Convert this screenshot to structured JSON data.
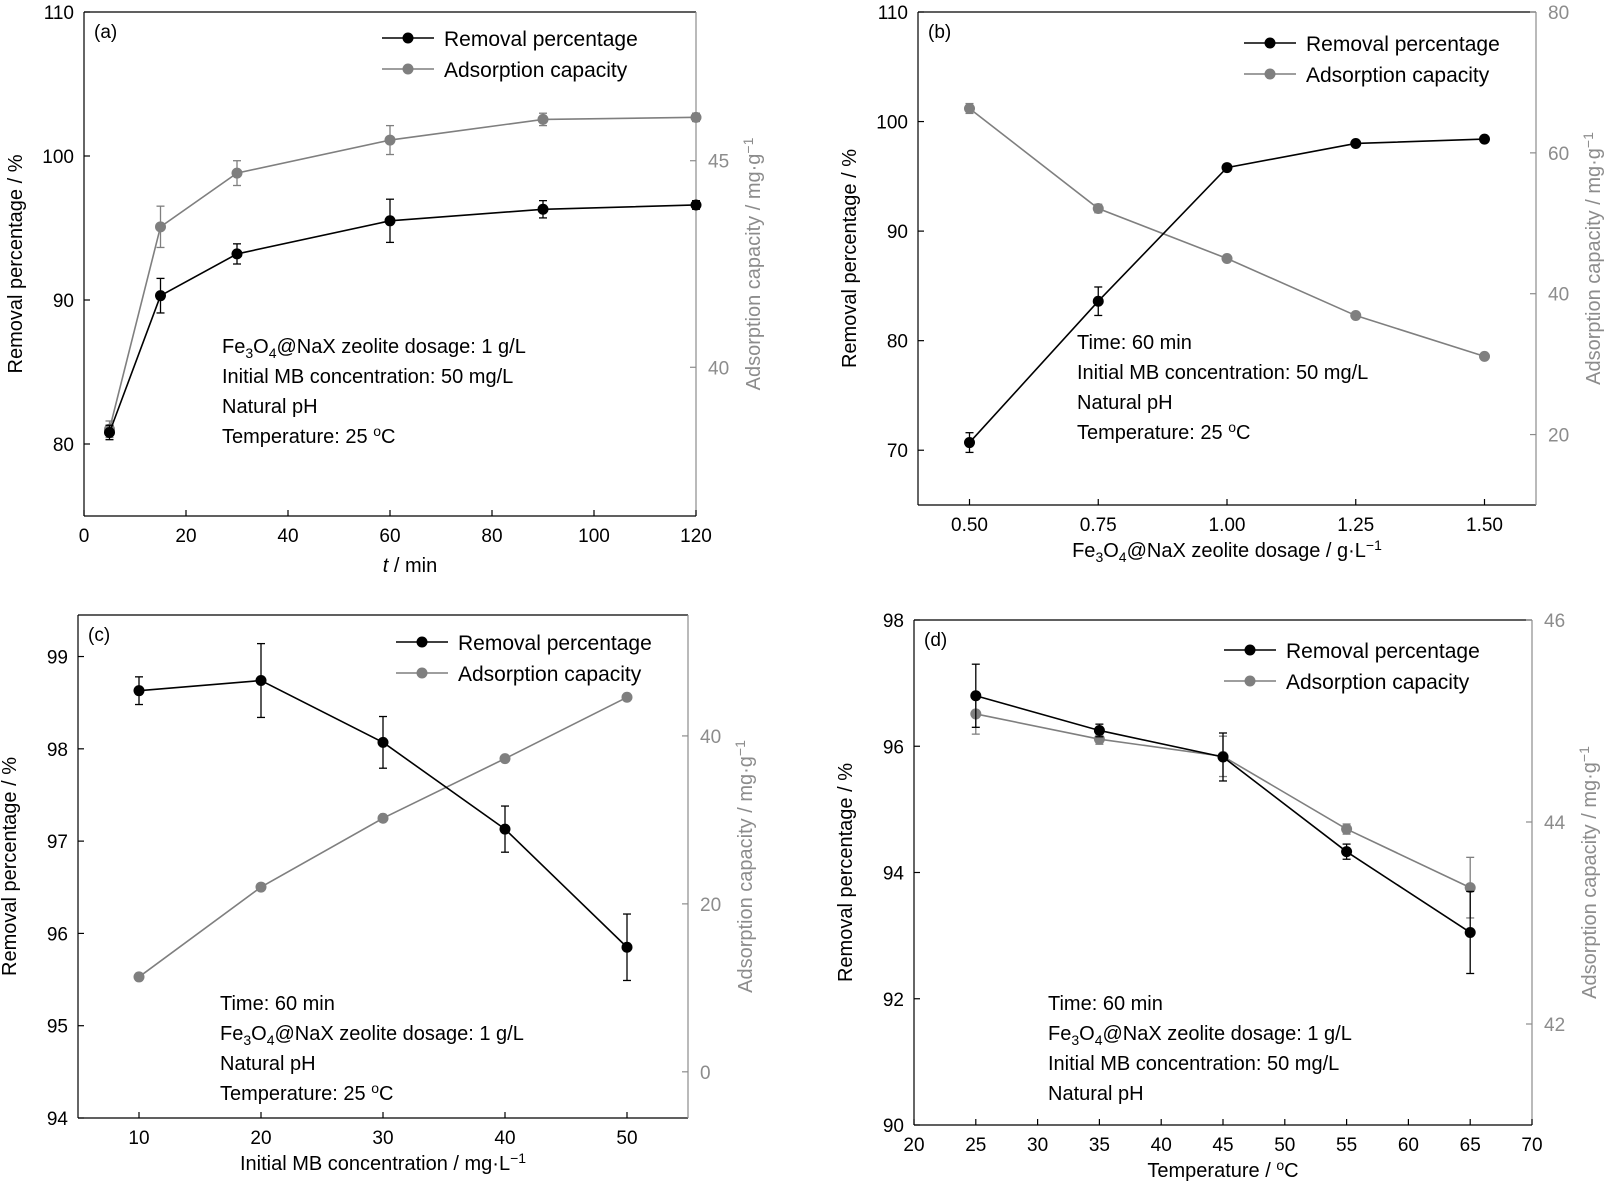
{
  "colors": {
    "primary": "#000000",
    "secondary": "#7f7f7f",
    "axis_secondary": "#8c8c8c"
  },
  "chart_data": [
    {
      "panel": "(a)",
      "type": "line",
      "xlabel": "t / min",
      "ylabel": "Removal percentage / %",
      "y2label": "Adsorption capacity / mg·g⁻¹",
      "xlim": [
        0,
        120
      ],
      "xticks": [
        "0",
        "20",
        "40",
        "60",
        "80",
        "100",
        "120"
      ],
      "ylim": [
        75,
        110
      ],
      "yticks": [
        "80",
        "90",
        "100",
        "110"
      ],
      "y2lim": [
        36.4,
        48.6
      ],
      "y2ticks": [
        "40",
        "45"
      ],
      "legend": [
        "Removal percentage",
        "Adsorption capacity"
      ],
      "annotations": [
        "Fe₃O₄@NaX zeolite dosage: 1 g/L",
        "Initial MB concentration: 50 mg/L",
        "Natural pH",
        "Temperature: 25 °C"
      ],
      "series": [
        {
          "name": "Removal percentage",
          "axis": "left",
          "x": [
            5,
            15,
            30,
            60,
            90,
            120
          ],
          "y": [
            80.8,
            90.3,
            93.2,
            95.5,
            96.3,
            96.6
          ],
          "err": [
            0.5,
            1.2,
            0.7,
            1.5,
            0.6,
            0.3
          ]
        },
        {
          "name": "Adsorption capacity",
          "axis": "right",
          "x": [
            5,
            15,
            30,
            60,
            90,
            120
          ],
          "y": [
            38.5,
            43.4,
            44.7,
            45.5,
            46.0,
            46.05
          ],
          "err": [
            0.2,
            0.5,
            0.3,
            0.35,
            0.15,
            0.1
          ]
        }
      ]
    },
    {
      "panel": "(b)",
      "type": "line",
      "xlabel": "Fe₃O₄@NaX zeolite dosage / g·L⁻¹",
      "ylabel": "Removal percentage / %",
      "y2label": "Adsorption capacity / mg·g⁻¹",
      "xlim": [
        0.4,
        1.6
      ],
      "xticks": [
        "0.50",
        "0.75",
        "1.00",
        "1.25",
        "1.50"
      ],
      "ylim": [
        65,
        110
      ],
      "yticks": [
        "70",
        "80",
        "90",
        "100",
        "110"
      ],
      "y2lim": [
        10,
        80
      ],
      "y2ticks": [
        "20",
        "40",
        "60",
        "80"
      ],
      "legend": [
        "Removal percentage",
        "Adsorption capacity"
      ],
      "annotations": [
        "Time: 60 min",
        "Initial MB concentration: 50 mg/L",
        "Natural pH",
        "Temperature: 25 °C"
      ],
      "series": [
        {
          "name": "Removal percentage",
          "axis": "left",
          "x": [
            0.5,
            0.75,
            1.0,
            1.25,
            1.5
          ],
          "y": [
            70.7,
            83.6,
            95.8,
            98.0,
            98.4
          ],
          "err": [
            0.9,
            1.3,
            0.3,
            0.2,
            0.2
          ]
        },
        {
          "name": "Adsorption capacity",
          "axis": "right",
          "x": [
            0.5,
            0.75,
            1.0,
            1.25,
            1.5
          ],
          "y": [
            66.3,
            52.1,
            45.0,
            36.9,
            31.1
          ],
          "err": [
            0.7,
            0.6,
            0.3,
            0.3,
            0.2
          ]
        }
      ]
    },
    {
      "panel": "(c)",
      "type": "line",
      "xlabel": "Initial MB concentration / mg·L⁻¹",
      "ylabel": "Removal percentage / %",
      "y2label": "Adsorption capacity / mg·g⁻¹",
      "xlim": [
        5,
        55
      ],
      "xticks": [
        "10",
        "20",
        "30",
        "40",
        "50"
      ],
      "ylim": [
        94,
        99.45
      ],
      "yticks": [
        "94",
        "95",
        "96",
        "97",
        "98",
        "99"
      ],
      "y2lim": [
        -5.5,
        54.4
      ],
      "y2ticks": [
        "0",
        "20",
        "40"
      ],
      "legend": [
        "Removal percentage",
        "Adsorption capacity"
      ],
      "annotations": [
        "Time: 60 min",
        "Fe₃O₄@NaX zeolite dosage: 1 g/L",
        "Natural pH",
        "Temperature: 25 °C"
      ],
      "series": [
        {
          "name": "Removal percentage",
          "axis": "left",
          "x": [
            10,
            20,
            30,
            40,
            50
          ],
          "y": [
            98.63,
            98.74,
            98.07,
            97.13,
            95.85
          ],
          "err": [
            0.15,
            0.4,
            0.28,
            0.25,
            0.36
          ]
        },
        {
          "name": "Adsorption capacity",
          "axis": "right",
          "x": [
            10,
            20,
            30,
            40,
            50
          ],
          "y": [
            11.3,
            22.0,
            30.2,
            37.3,
            44.6
          ],
          "err": [
            0.4,
            0.3,
            0.3,
            0.3,
            0.3
          ]
        }
      ]
    },
    {
      "panel": "(d)",
      "type": "line",
      "xlabel": "Temperature / °C",
      "ylabel": "Removal percentage / %",
      "y2label": "Adsorption capacity / mg·g⁻¹",
      "xlim": [
        20,
        70
      ],
      "xticks": [
        "20",
        "25",
        "30",
        "35",
        "40",
        "45",
        "50",
        "55",
        "60",
        "65",
        "70"
      ],
      "ylim": [
        90,
        98
      ],
      "yticks": [
        "90",
        "92",
        "94",
        "96",
        "98"
      ],
      "y2lim": [
        41,
        46
      ],
      "y2ticks": [
        "42",
        "44",
        "46"
      ],
      "legend": [
        "Removal percentage",
        "Adsorption capacity"
      ],
      "annotations": [
        "Time: 60 min",
        "Fe₃O₄@NaX zeolite dosage: 1 g/L",
        "Initial MB concentration: 50 mg/L",
        "Natural pH"
      ],
      "series": [
        {
          "name": "Removal percentage",
          "axis": "left",
          "x": [
            25,
            35,
            45,
            55,
            65
          ],
          "y": [
            96.8,
            96.25,
            95.83,
            94.33,
            93.05
          ],
          "err": [
            0.5,
            0.1,
            0.38,
            0.12,
            0.65
          ]
        },
        {
          "name": "Adsorption capacity",
          "axis": "right",
          "x": [
            25,
            35,
            45,
            55,
            65
          ],
          "y": [
            45.07,
            44.82,
            44.65,
            43.93,
            43.35
          ],
          "err": [
            0.2,
            0.05,
            0.2,
            0.05,
            0.3
          ]
        }
      ]
    }
  ]
}
